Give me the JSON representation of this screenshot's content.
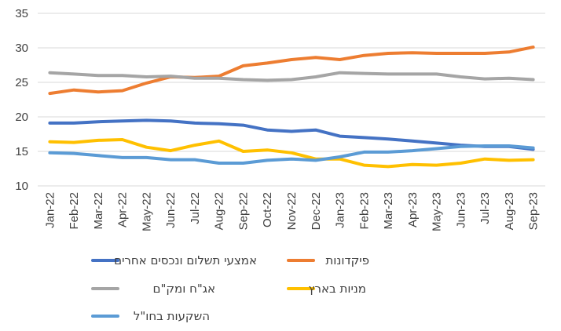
{
  "chart_data": {
    "type": "line",
    "categories": [
      "Jan-22",
      "Feb-22",
      "Mar-22",
      "Apr-22",
      "May-22",
      "Jun-22",
      "Jul-22",
      "Aug-22",
      "Sep-22",
      "Oct-22",
      "Nov-22",
      "Dec-22",
      "Jan-23",
      "Feb-23",
      "Mar-23",
      "Apr-23",
      "May-23",
      "Jun-23",
      "Jul-23",
      "Aug-23",
      "Sep-23"
    ],
    "ylim": [
      10,
      35
    ],
    "yticks": [
      10,
      15,
      20,
      25,
      30,
      35
    ],
    "grid": true,
    "legend_position": "bottom",
    "series": [
      {
        "name": "אמצעי תשלום ונכסים אחרים",
        "color": "#4472C4",
        "values": [
          19.1,
          19.1,
          19.3,
          19.4,
          19.5,
          19.4,
          19.1,
          19.0,
          18.8,
          18.1,
          17.9,
          18.1,
          17.2,
          17.0,
          16.8,
          16.5,
          16.2,
          15.9,
          15.7,
          15.7,
          15.3
        ]
      },
      {
        "name": "פיקדונות",
        "color": "#ED7D31",
        "values": [
          23.4,
          23.9,
          23.6,
          23.8,
          24.9,
          25.8,
          25.7,
          25.9,
          27.4,
          27.8,
          28.3,
          28.6,
          28.3,
          28.9,
          29.2,
          29.3,
          29.2,
          29.2,
          29.2,
          29.4,
          30.1
        ]
      },
      {
        "name": "אג\"ח ומק\"ם",
        "color": "#A5A5A5",
        "values": [
          26.4,
          26.2,
          26.0,
          26.0,
          25.8,
          25.9,
          25.6,
          25.6,
          25.4,
          25.3,
          25.4,
          25.8,
          26.4,
          26.3,
          26.2,
          26.2,
          26.2,
          25.8,
          25.5,
          25.6,
          25.4
        ]
      },
      {
        "name": "מניות בארץ",
        "color": "#FFC000",
        "values": [
          16.4,
          16.3,
          16.6,
          16.7,
          15.6,
          15.1,
          15.9,
          16.5,
          15.0,
          15.2,
          14.8,
          13.9,
          13.9,
          13.0,
          12.8,
          13.1,
          13.0,
          13.3,
          13.9,
          13.7,
          13.8
        ]
      },
      {
        "name": "השקעות בחו\"ל",
        "color": "#5B9BD5",
        "values": [
          14.8,
          14.7,
          14.4,
          14.1,
          14.1,
          13.8,
          13.8,
          13.3,
          13.3,
          13.7,
          13.9,
          13.7,
          14.2,
          14.9,
          14.9,
          15.1,
          15.4,
          15.7,
          15.8,
          15.8,
          15.5
        ]
      }
    ]
  }
}
